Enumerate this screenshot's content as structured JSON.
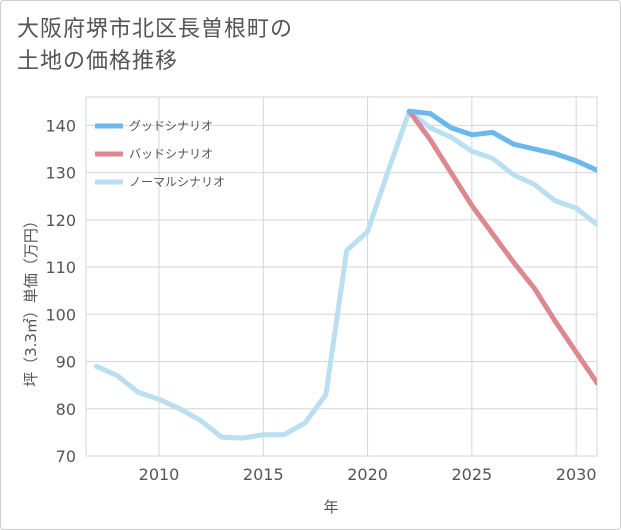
{
  "title_line1": "大阪府堺市北区長曽根町の",
  "title_line2": "土地の価格推移",
  "chart_data": {
    "type": "line",
    "title": "大阪府堺市北区長曽根町の土地の価格推移",
    "xlabel": "年",
    "ylabel": "坪（3.3㎡）単価（万円）",
    "xlim": [
      2006.5,
      2031
    ],
    "ylim": [
      70,
      146
    ],
    "x_ticks": [
      2010,
      2015,
      2020,
      2025,
      2030
    ],
    "y_ticks": [
      70,
      80,
      90,
      100,
      110,
      120,
      130,
      140
    ],
    "legend_position": "top-left",
    "series": [
      {
        "name": "グッドシナリオ",
        "color": "#6ab8ee",
        "x": [
          2022,
          2023,
          2024,
          2025,
          2026,
          2027,
          2028,
          2029,
          2030,
          2031
        ],
        "values": [
          143,
          142.5,
          139.5,
          138,
          138.5,
          136,
          135,
          134,
          132.5,
          130.5
        ]
      },
      {
        "name": "バッドシナリオ",
        "color": "#dd8891",
        "x": [
          2022,
          2023,
          2024,
          2025,
          2026,
          2027,
          2028,
          2029,
          2030,
          2031
        ],
        "values": [
          143,
          137,
          130,
          123,
          117,
          111,
          105.5,
          98.5,
          92,
          85.5
        ]
      },
      {
        "name": "ノーマルシナリオ",
        "color": "#b9dff0",
        "x": [
          2007,
          2008,
          2009,
          2010,
          2011,
          2012,
          2013,
          2014,
          2015,
          2016,
          2017,
          2018,
          2019,
          2020,
          2021,
          2022,
          2023,
          2024,
          2025,
          2026,
          2027,
          2028,
          2029,
          2030,
          2031
        ],
        "values": [
          89,
          87,
          83.5,
          82,
          80,
          77.5,
          74,
          73.8,
          74.5,
          74.5,
          77,
          83,
          113.5,
          117.5,
          130.5,
          143,
          139.5,
          137.5,
          134.5,
          133,
          129.5,
          127.5,
          124,
          122.5,
          119
        ]
      }
    ]
  }
}
